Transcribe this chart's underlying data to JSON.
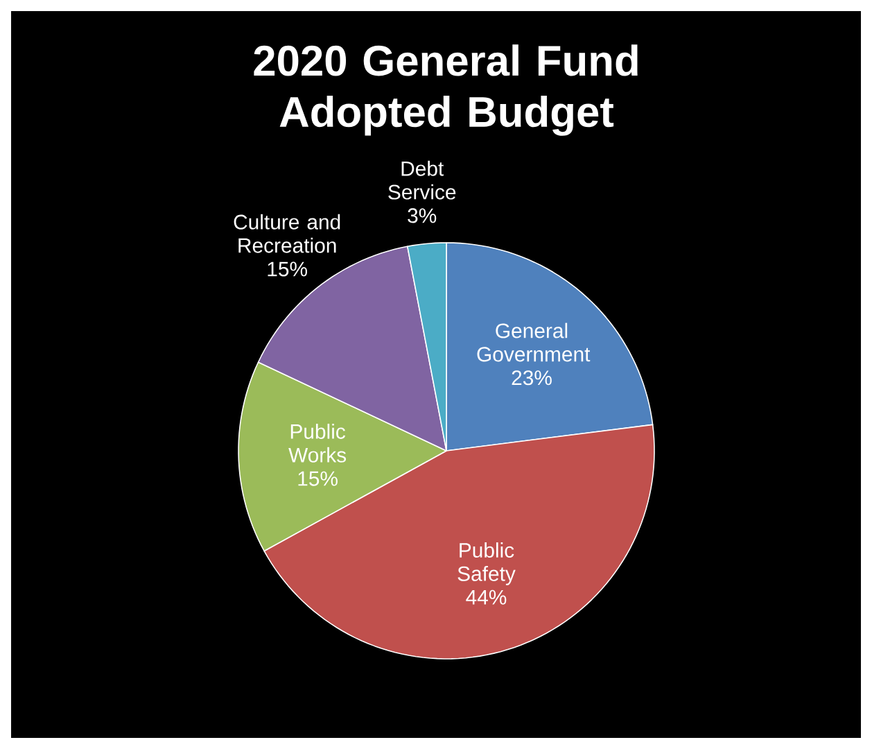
{
  "chart_data": {
    "type": "pie",
    "title": "2020 General Fund Adopted Budget",
    "categories": [
      "General Government",
      "Public Safety",
      "Public Works",
      "Culture and Recreation",
      "Debt Service"
    ],
    "values": [
      23,
      44,
      15,
      15,
      3
    ],
    "value_labels": [
      "23%",
      "44%",
      "15%",
      "15%",
      "3%"
    ],
    "colors": [
      "#4f81bd",
      "#c0504d",
      "#9bbb59",
      "#8064a2",
      "#4bacc6"
    ]
  }
}
